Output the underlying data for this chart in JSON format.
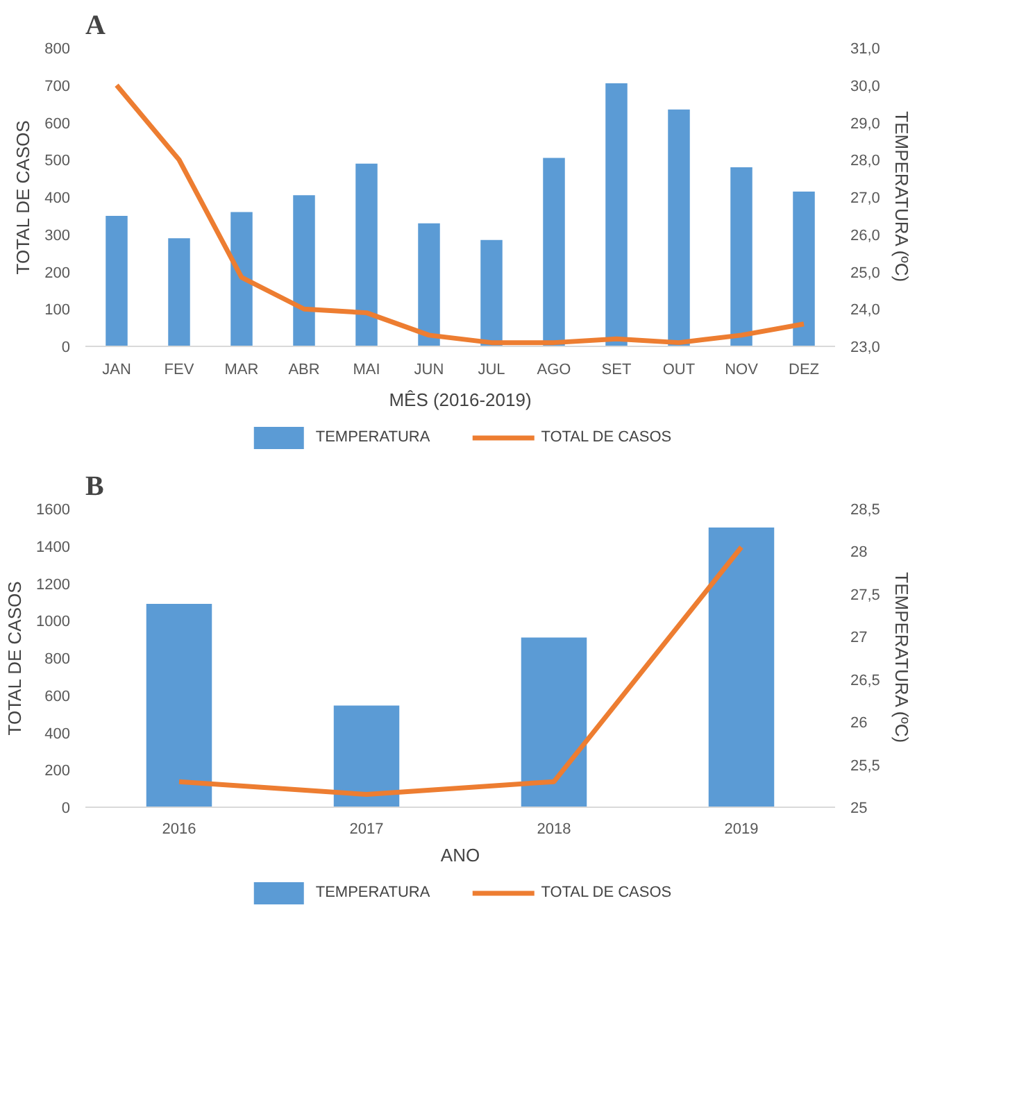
{
  "chart_data": [
    {
      "type": "bar",
      "title": "A",
      "xlabel": "MÊS (2016-2019)",
      "ylabel": "TOTAL DE CASOS",
      "y2label": "TEMPERATURA (ºC)",
      "categories": [
        "JAN",
        "FEV",
        "MAR",
        "ABR",
        "MAI",
        "JUN",
        "JUL",
        "AGO",
        "SET",
        "OUT",
        "NOV",
        "DEZ"
      ],
      "series": [
        {
          "name": "TEMPERATURA",
          "color": "#5b9bd5",
          "values": [
            350,
            290,
            360,
            405,
            490,
            330,
            285,
            505,
            705,
            635,
            480,
            415
          ]
        },
        {
          "name": "TOTAL DE CASOS",
          "type": "line",
          "axis": "y2",
          "color": "#ed7d31",
          "values": [
            30.0,
            28.0,
            24.85,
            24.0,
            23.9,
            23.3,
            23.1,
            23.1,
            23.2,
            23.1,
            23.3,
            23.6
          ]
        }
      ],
      "ylim": [
        0,
        800
      ],
      "yticks": [
        0,
        100,
        200,
        300,
        400,
        500,
        600,
        700,
        800
      ],
      "y2lim": [
        23,
        31
      ],
      "y2ticks": [
        {
          "value": 23,
          "label": "23,0"
        },
        {
          "value": 24,
          "label": "24,0"
        },
        {
          "value": 25,
          "label": "25,0"
        },
        {
          "value": 26,
          "label": "26,0"
        },
        {
          "value": 27,
          "label": "27,0"
        },
        {
          "value": 28,
          "label": "28,0"
        },
        {
          "value": 29,
          "label": "29,0"
        },
        {
          "value": 30,
          "label": "30,0"
        },
        {
          "value": 31,
          "label": "31,0"
        }
      ],
      "grid": false,
      "legend": "bottom",
      "line_style": "solid",
      "marker": "none"
    },
    {
      "type": "bar",
      "title": "B",
      "xlabel": "ANO",
      "ylabel": "TOTAL DE CASOS",
      "y2label": "TEMPERATURA (ºC)",
      "categories": [
        "2016",
        "2017",
        "2018",
        "2019"
      ],
      "series": [
        {
          "name": "TEMPERATURA",
          "color": "#5b9bd5",
          "values": [
            1090,
            545,
            910,
            1500
          ]
        },
        {
          "name": "TOTAL DE CASOS",
          "type": "line",
          "axis": "y2",
          "color": "#ed7d31",
          "values": [
            25.3,
            25.15,
            25.3,
            28.05
          ]
        }
      ],
      "ylim": [
        0,
        1600
      ],
      "yticks": [
        0,
        200,
        400,
        600,
        800,
        1000,
        1200,
        1400,
        1600
      ],
      "y2lim": [
        25,
        28.5
      ],
      "y2ticks": [
        25,
        {
          "value": 25.5,
          "label": "25,5"
        },
        26,
        {
          "value": 26.5,
          "label": "26,5"
        },
        27,
        {
          "value": 27.5,
          "label": "27,5"
        },
        28,
        {
          "value": 28.5,
          "label": "28,5"
        }
      ],
      "grid": false,
      "legend": "bottom",
      "line_style": "solid",
      "marker": "none"
    }
  ]
}
